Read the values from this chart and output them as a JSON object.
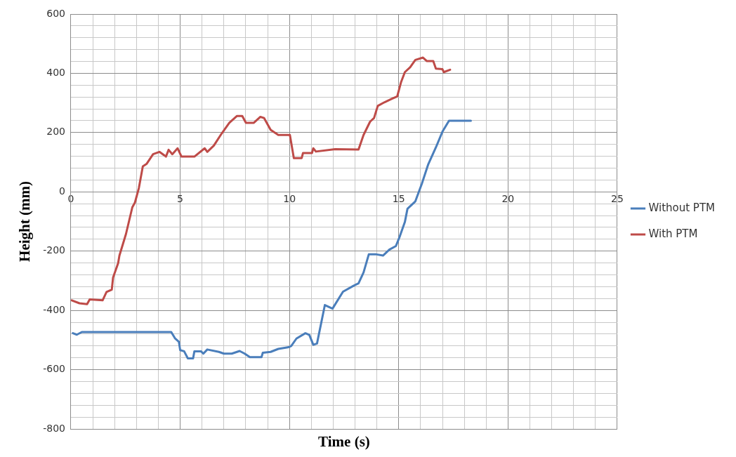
{
  "chart_data": {
    "type": "line",
    "xlabel": "Time (s)",
    "ylabel": "Height (mm)",
    "legend": "right",
    "grid": true,
    "marker": "none",
    "line_style": "solid",
    "xlim": [
      0,
      25
    ],
    "ylim": [
      -800,
      600
    ],
    "xticks": [
      0,
      {
        "value": 1,
        "label": null
      },
      {
        "value": 2,
        "label": null
      },
      {
        "value": 3,
        "label": null
      },
      {
        "value": 4,
        "label": null
      },
      5,
      {
        "value": 6,
        "label": null
      },
      {
        "value": 7,
        "label": null
      },
      {
        "value": 8,
        "label": null
      },
      {
        "value": 9,
        "label": null
      },
      10,
      {
        "value": 11,
        "label": null
      },
      {
        "value": 12,
        "label": null
      },
      {
        "value": 13,
        "label": null
      },
      {
        "value": 14,
        "label": null
      },
      15,
      {
        "value": 16,
        "label": null
      },
      {
        "value": 17,
        "label": null
      },
      {
        "value": 18,
        "label": null
      },
      {
        "value": 19,
        "label": null
      },
      20,
      {
        "value": 21,
        "label": null
      },
      {
        "value": 22,
        "label": null
      },
      {
        "value": 23,
        "label": null
      },
      {
        "value": 24,
        "label": null
      },
      25
    ],
    "yticks": [
      -800,
      {
        "value": -760,
        "label": null
      },
      {
        "value": -720,
        "label": null
      },
      {
        "value": -680,
        "label": null
      },
      {
        "value": -640,
        "label": null
      },
      -600,
      {
        "value": -560,
        "label": null
      },
      {
        "value": -520,
        "label": null
      },
      {
        "value": -480,
        "label": null
      },
      {
        "value": -440,
        "label": null
      },
      -400,
      {
        "value": -360,
        "label": null
      },
      {
        "value": -320,
        "label": null
      },
      {
        "value": -280,
        "label": null
      },
      {
        "value": -240,
        "label": null
      },
      -200,
      {
        "value": -160,
        "label": null
      },
      {
        "value": -120,
        "label": null
      },
      {
        "value": -80,
        "label": null
      },
      {
        "value": -40,
        "label": null
      },
      0,
      {
        "value": 40,
        "label": null
      },
      {
        "value": 80,
        "label": null
      },
      {
        "value": 120,
        "label": null
      },
      {
        "value": 160,
        "label": null
      },
      200,
      {
        "value": 240,
        "label": null
      },
      {
        "value": 280,
        "label": null
      },
      {
        "value": 320,
        "label": null
      },
      {
        "value": 360,
        "label": null
      },
      400,
      {
        "value": 440,
        "label": null
      },
      {
        "value": 480,
        "label": null
      },
      {
        "value": 520,
        "label": null
      },
      {
        "value": 560,
        "label": null
      },
      600
    ],
    "series": [
      {
        "name": "Without PTM",
        "color": "#4a7ebb",
        "x": [
          0.09,
          0.27,
          0.5,
          4.59,
          4.76,
          4.94,
          5.0,
          5.18,
          5.35,
          5.59,
          5.65,
          5.95,
          6.06,
          6.24,
          6.77,
          7.0,
          7.36,
          7.72,
          7.95,
          8.19,
          8.72,
          8.78,
          9.14,
          9.49,
          9.97,
          10.08,
          10.32,
          10.73,
          10.91,
          11.09,
          11.26,
          11.62,
          11.97,
          12.45,
          12.93,
          13.16,
          13.39,
          13.63,
          13.98,
          14.28,
          14.57,
          14.87,
          15.05,
          15.28,
          15.4,
          15.76,
          16.06,
          16.35,
          16.7,
          17.0,
          17.3,
          18.3
        ],
        "values": [
          -477,
          -482,
          -473,
          -473,
          -494,
          -506,
          -534,
          -538,
          -562,
          -562,
          -538,
          -538,
          -546,
          -532,
          -540,
          -546,
          -546,
          -537,
          -546,
          -558,
          -558,
          -543,
          -540,
          -530,
          -524,
          -520,
          -495,
          -477,
          -483,
          -516,
          -512,
          -382,
          -394,
          -337,
          -317,
          -309,
          -272,
          -211,
          -211,
          -215,
          -195,
          -183,
          -150,
          -102,
          -57,
          -32,
          28,
          93,
          150,
          203,
          240,
          240
        ]
      },
      {
        "name": "With PTM",
        "color": "#be4b48",
        "x": [
          0.04,
          0.39,
          0.74,
          0.86,
          1.45,
          1.63,
          1.87,
          1.93,
          2.16,
          2.22,
          2.52,
          2.81,
          2.93,
          3.11,
          3.29,
          3.46,
          3.76,
          4.05,
          4.35,
          4.47,
          4.64,
          4.88,
          5.06,
          5.65,
          6.12,
          6.24,
          6.54,
          6.89,
          7.25,
          7.6,
          7.84,
          8.01,
          8.37,
          8.67,
          8.84,
          9.14,
          9.49,
          10.02,
          10.2,
          10.56,
          10.62,
          11.03,
          11.09,
          11.21,
          12.09,
          13.16,
          13.39,
          13.69,
          13.87,
          14.04,
          14.34,
          14.69,
          14.93,
          15.11,
          15.28,
          15.52,
          15.76,
          16.11,
          16.29,
          16.58,
          16.7,
          17.0,
          17.06,
          17.35
        ],
        "values": [
          -366,
          -376,
          -379,
          -363,
          -366,
          -338,
          -330,
          -289,
          -241,
          -215,
          -142,
          -52,
          -36,
          13,
          86,
          94,
          127,
          135,
          119,
          142,
          127,
          147,
          119,
          119,
          147,
          135,
          156,
          196,
          233,
          256,
          256,
          233,
          233,
          253,
          249,
          209,
          192,
          192,
          114,
          114,
          131,
          131,
          147,
          136,
          144,
          143,
          192,
          237,
          249,
          290,
          302,
          314,
          322,
          371,
          404,
          420,
          445,
          453,
          441,
          441,
          416,
          414,
          404,
          412
        ]
      }
    ]
  }
}
